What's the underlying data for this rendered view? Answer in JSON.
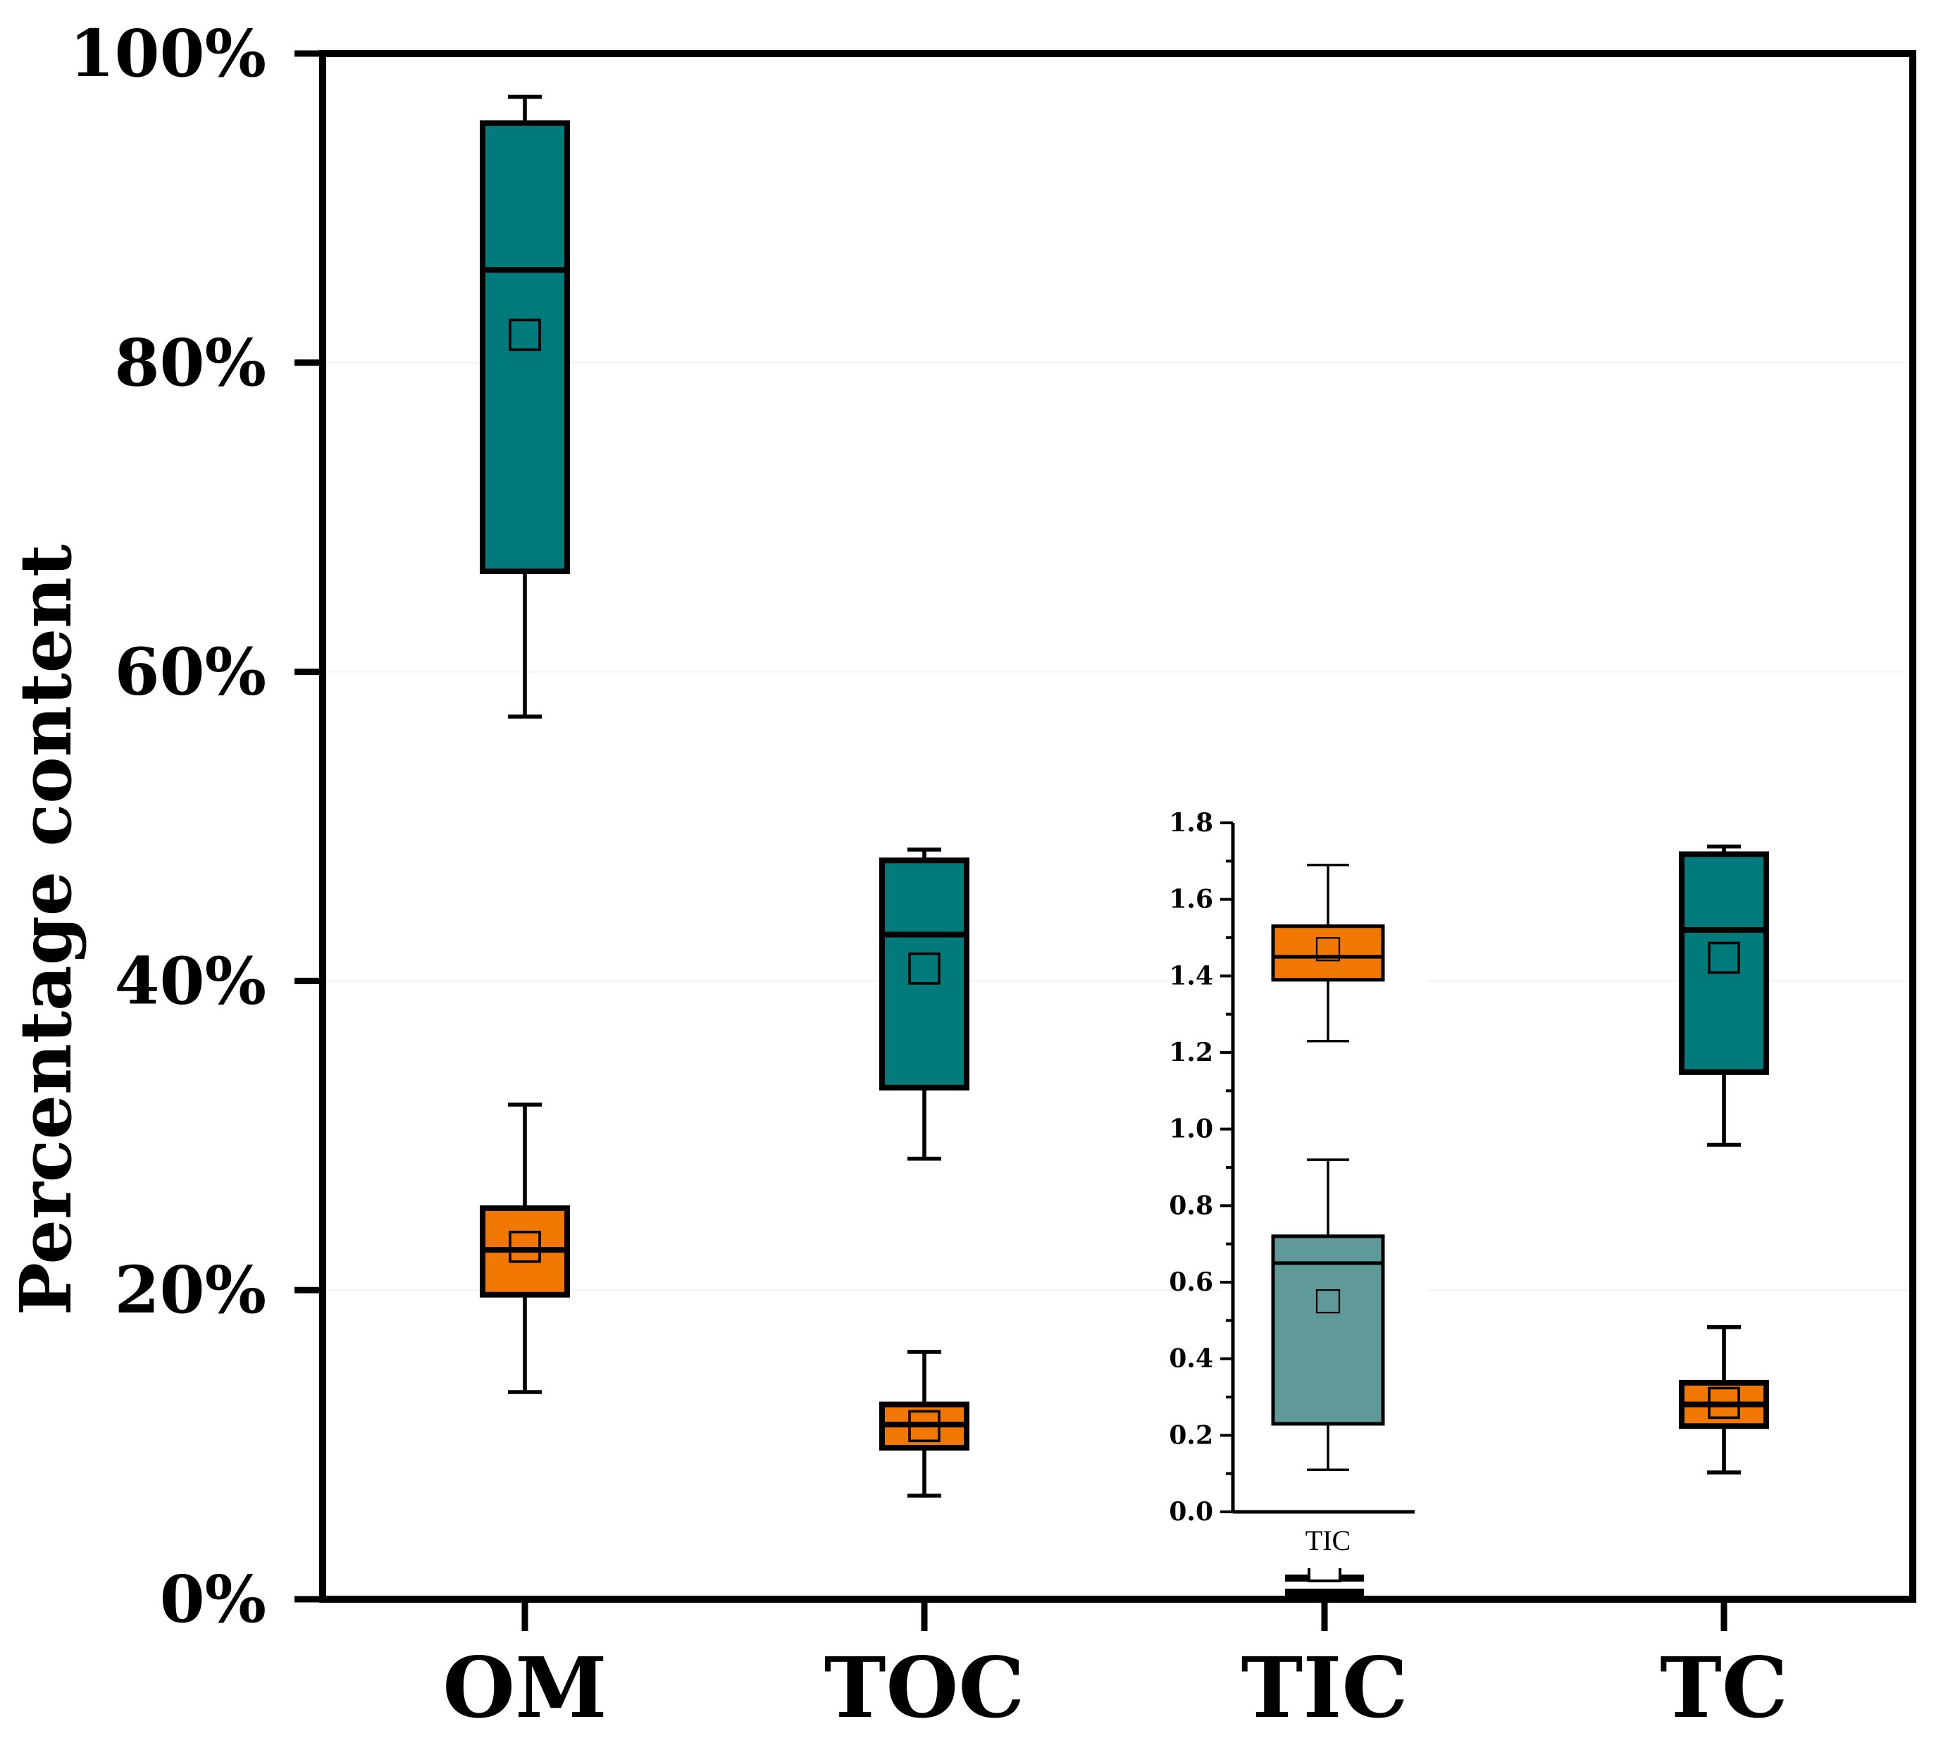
{
  "chart_data": [
    {
      "type": "box",
      "ylabel": "Percentage content",
      "categories": [
        "OM",
        "TOC",
        "TIC",
        "TC"
      ],
      "ylim": [
        0,
        100
      ],
      "yticks": [
        0,
        20,
        40,
        60,
        80,
        100
      ],
      "ytick_labels": [
        "0%",
        "20%",
        "40%",
        "60%",
        "80%",
        "100%"
      ],
      "series": [
        {
          "name": "teal",
          "color": "#007a7a",
          "boxes": [
            {
              "category": "OM",
              "min": 57.1,
              "q1": 66.5,
              "median": 86.0,
              "q3": 95.5,
              "max": 97.2,
              "mean": 81.8
            },
            {
              "category": "TOC",
              "min": 28.5,
              "q1": 33.1,
              "median": 43.0,
              "q3": 47.8,
              "max": 48.5,
              "mean": 40.8
            },
            {
              "category": "TIC",
              "min": 0.1,
              "q1": 0.2,
              "median": 0.65,
              "q3": 0.72,
              "max": 0.92,
              "mean": 0.55
            },
            {
              "category": "TC",
              "min": 29.4,
              "q1": 34.1,
              "median": 43.3,
              "q3": 48.2,
              "max": 48.7,
              "mean": 41.5
            }
          ]
        },
        {
          "name": "orange",
          "color": "#f07800",
          "boxes": [
            {
              "category": "OM",
              "min": 13.4,
              "q1": 19.7,
              "median": 22.6,
              "q3": 25.3,
              "max": 32.0,
              "mean": 22.8
            },
            {
              "category": "TOC",
              "min": 6.7,
              "q1": 9.8,
              "median": 11.3,
              "q3": 12.6,
              "max": 16.0,
              "mean": 11.2
            },
            {
              "category": "TIC",
              "min": 1.23,
              "q1": 1.39,
              "median": 1.45,
              "q3": 1.53,
              "max": 1.69,
              "mean": 1.47
            },
            {
              "category": "TC",
              "min": 8.2,
              "q1": 11.2,
              "median": 12.6,
              "q3": 14.0,
              "max": 17.6,
              "mean": 12.7
            }
          ]
        }
      ]
    },
    {
      "type": "box",
      "inset": true,
      "xlabel": "TIC",
      "ylim": [
        0,
        1.8
      ],
      "yticks": [
        0.0,
        0.2,
        0.4,
        0.6,
        0.8,
        1.0,
        1.2,
        1.4,
        1.6,
        1.8
      ],
      "ytick_labels": [
        "0.0",
        "0.2",
        "0.4",
        "0.6",
        "0.8",
        "1.0",
        "1.2",
        "1.4",
        "1.6",
        "1.8"
      ],
      "series": [
        {
          "name": "orange",
          "color": "#f07800",
          "boxes": [
            {
              "category": "TIC",
              "min": 1.23,
              "q1": 1.39,
              "median": 1.45,
              "q3": 1.53,
              "max": 1.69,
              "mean": 1.47
            }
          ]
        },
        {
          "name": "teal",
          "color": "#5f9a98",
          "boxes": [
            {
              "category": "TIC",
              "min": 0.11,
              "q1": 0.23,
              "median": 0.65,
              "q3": 0.72,
              "max": 0.92,
              "mean": 0.55
            }
          ]
        }
      ]
    }
  ]
}
